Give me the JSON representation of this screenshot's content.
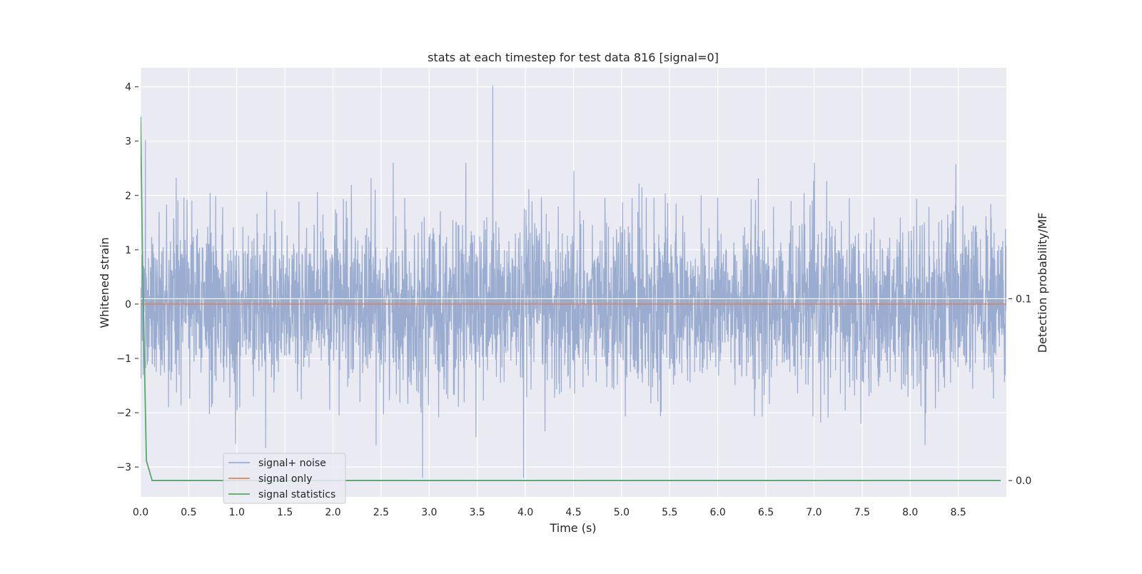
{
  "chart_data": {
    "type": "line",
    "title": "stats at each timestep for test data 816 [signal=0]",
    "xlabel": "Time (s)",
    "ylabel": "Whitened strain",
    "y2label": "Detection probability/MF",
    "xlim": [
      0.0,
      9.0
    ],
    "ylim": [
      -3.55,
      4.35
    ],
    "y2lim": [
      -0.009,
      0.227
    ],
    "grid": true,
    "legend_position": "lower-left",
    "x_ticks": [
      "0.0",
      "0.5",
      "1.0",
      "1.5",
      "2.0",
      "2.5",
      "3.0",
      "3.5",
      "4.0",
      "4.5",
      "5.0",
      "5.5",
      "6.0",
      "6.5",
      "7.0",
      "7.5",
      "8.0",
      "8.5"
    ],
    "y_ticks": [
      "4",
      "3",
      "2",
      "1",
      "0",
      "−1",
      "−2",
      "−3"
    ],
    "y2_ticks": [
      "0.1",
      "0.0"
    ],
    "series": [
      {
        "name": "signal+ noise",
        "color": "#9aaccf",
        "description_values": {
          "typical_envelope": [
            -1.6,
            1.6
          ],
          "peaks": [
            [
              0.05,
              3.02
            ],
            [
              3.66,
              4.02
            ],
            [
              2.93,
              -3.2
            ],
            [
              3.98,
              -3.2
            ],
            [
              1.3,
              -2.65
            ]
          ]
        }
      },
      {
        "name": "signal only",
        "color": "#dd8452",
        "x": [
          0.0,
          9.0
        ],
        "y": [
          0.0,
          0.0
        ]
      },
      {
        "name": "signal statistics",
        "color": "#55a868",
        "axis": "right",
        "x": [
          0.0,
          0.02,
          0.06,
          0.12,
          0.3,
          9.0
        ],
        "y": [
          0.2,
          0.12,
          0.011,
          0.0,
          0.0,
          0.0
        ]
      }
    ],
    "extra_lines": [
      {
        "axis": "right",
        "y": 0.1,
        "color": "#ffffff"
      }
    ]
  }
}
